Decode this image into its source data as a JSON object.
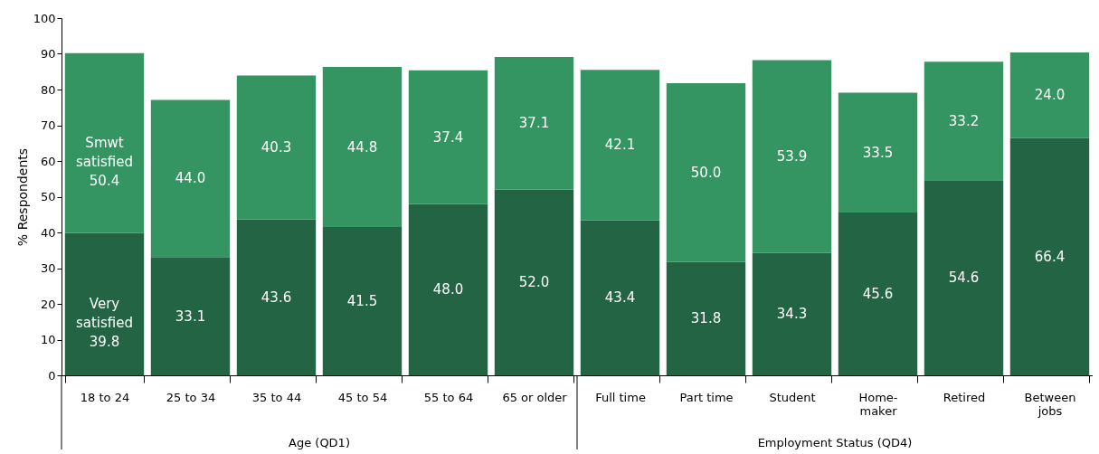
{
  "chart_data": {
    "type": "bar",
    "stacked": true,
    "ylabel": "% Respondents",
    "categories": [
      "18 to 24",
      "25 to 34",
      "35 to 44",
      "45 to 54",
      "55 to 64",
      "65 or older",
      "Full time",
      "Part time",
      "Student",
      "Home-\nmaker",
      "Retired",
      "Between\njobs"
    ],
    "series": [
      {
        "name": "Very satisfied",
        "color": "#226443",
        "values": [
          39.8,
          33.1,
          43.6,
          41.5,
          48.0,
          52.0,
          43.4,
          31.8,
          34.3,
          45.6,
          54.6,
          66.4
        ],
        "value_labels": [
          "39.8",
          "33.1",
          "43.6",
          "41.5",
          "48.0",
          "52.0",
          "43.4",
          "31.8",
          "34.3",
          "45.6",
          "54.6",
          "66.4"
        ]
      },
      {
        "name": "Smwt satisfied",
        "color": "#349462",
        "values": [
          50.4,
          44.0,
          40.3,
          44.8,
          37.4,
          37.1,
          42.1,
          50.0,
          53.9,
          33.5,
          33.2,
          24.0
        ],
        "value_labels": [
          "50.4",
          "44.0",
          "40.3",
          "44.8",
          "37.4",
          "37.1",
          "42.1",
          "50.0",
          "53.9",
          "33.5",
          "33.2",
          "24.0"
        ]
      }
    ],
    "ylim": [
      0,
      100
    ],
    "yticks": [
      0,
      10,
      20,
      30,
      40,
      50,
      60,
      70,
      80,
      90,
      100
    ],
    "annotations": [
      "Age (QD1)",
      "Employment Status (QD4)"
    ],
    "grid": false,
    "legend": false
  }
}
